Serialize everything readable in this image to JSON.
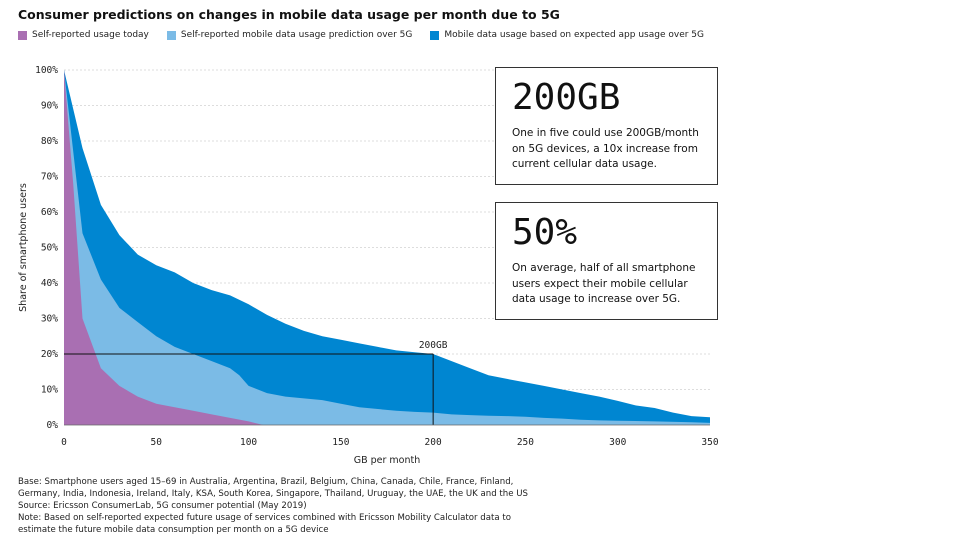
{
  "title": "Consumer predictions on changes in mobile data usage per month due to 5G",
  "legend": [
    {
      "label": "Self-reported usage today",
      "color": "#a96fb2"
    },
    {
      "label": "Self-reported mobile data usage prediction over 5G",
      "color": "#7bbbe6"
    },
    {
      "label": "Mobile data usage based on expected app usage over 5G",
      "color": "#0086d1"
    }
  ],
  "callouts": [
    {
      "big": "200GB",
      "text": "One in five could use 200GB/month on 5G devices, a 10x increase from current cellular data usage."
    },
    {
      "big": "50%",
      "text": "On average, half of all smartphone users expect their mobile cellular data usage to increase over 5G."
    }
  ],
  "annotation": {
    "label": "200GB",
    "x": 200,
    "y": 20
  },
  "footnotes": [
    "Base: Smartphone users aged 15–69 in Australia, Argentina, Brazil, Belgium, China, Canada, Chile, France, Finland,",
    "Germany, India, Indonesia, Ireland, Italy, KSA, South Korea, Singapore, Thailand, Uruguay, the UAE, the UK and the US",
    "Source: Ericsson ConsumerLab, 5G consumer potential (May 2019)",
    "Note: Based on self-reported expected future usage of services combined with Ericsson Mobility Calculator data to",
    "estimate the future mobile data consumption per month on a 5G device"
  ],
  "chart_data": {
    "type": "area",
    "title": "Consumer predictions on changes in mobile data usage per month due to 5G",
    "xlabel": "GB per month",
    "ylabel": "Share of smartphone users",
    "xlim": [
      0,
      350
    ],
    "ylim": [
      0,
      100
    ],
    "x_ticks": [
      0,
      50,
      100,
      150,
      200,
      250,
      300,
      350
    ],
    "y_ticks": [
      "0%",
      "10%",
      "20%",
      "30%",
      "40%",
      "50%",
      "60%",
      "70%",
      "80%",
      "90%",
      "100%"
    ],
    "legend_position": "top-left",
    "grid": "horizontal dashed",
    "series": [
      {
        "name": "Mobile data usage based on expected app usage over 5G",
        "color": "#0086d1",
        "points": [
          [
            0,
            100
          ],
          [
            10,
            78
          ],
          [
            20,
            62
          ],
          [
            30,
            53.5
          ],
          [
            40,
            48
          ],
          [
            50,
            45
          ],
          [
            60,
            43
          ],
          [
            70,
            40
          ],
          [
            80,
            38
          ],
          [
            90,
            36.5
          ],
          [
            100,
            34
          ],
          [
            110,
            31
          ],
          [
            120,
            28.5
          ],
          [
            130,
            26.5
          ],
          [
            140,
            25
          ],
          [
            150,
            24
          ],
          [
            160,
            23
          ],
          [
            170,
            22
          ],
          [
            180,
            21
          ],
          [
            190,
            20.5
          ],
          [
            200,
            20
          ],
          [
            210,
            18
          ],
          [
            220,
            16
          ],
          [
            230,
            14
          ],
          [
            240,
            13
          ],
          [
            250,
            12
          ],
          [
            260,
            11
          ],
          [
            270,
            10
          ],
          [
            280,
            9
          ],
          [
            290,
            8
          ],
          [
            300,
            6.8
          ],
          [
            310,
            5.5
          ],
          [
            320,
            4.8
          ],
          [
            330,
            3.5
          ],
          [
            340,
            2.5
          ],
          [
            350,
            2.2
          ]
        ]
      },
      {
        "name": "Self-reported mobile data usage prediction over 5G",
        "color": "#7bbbe6",
        "points": [
          [
            0,
            100
          ],
          [
            10,
            54
          ],
          [
            20,
            41
          ],
          [
            30,
            33
          ],
          [
            40,
            29
          ],
          [
            50,
            25
          ],
          [
            60,
            22
          ],
          [
            70,
            20
          ],
          [
            80,
            18
          ],
          [
            90,
            16
          ],
          [
            95,
            14
          ],
          [
            100,
            11
          ],
          [
            110,
            9
          ],
          [
            120,
            8
          ],
          [
            130,
            7.5
          ],
          [
            140,
            7
          ],
          [
            150,
            6
          ],
          [
            160,
            5
          ],
          [
            170,
            4.5
          ],
          [
            180,
            4
          ],
          [
            190,
            3.7
          ],
          [
            200,
            3.5
          ],
          [
            210,
            3
          ],
          [
            220,
            2.8
          ],
          [
            230,
            2.6
          ],
          [
            240,
            2.5
          ],
          [
            250,
            2.3
          ],
          [
            260,
            2
          ],
          [
            270,
            1.8
          ],
          [
            280,
            1.5
          ],
          [
            290,
            1.3
          ],
          [
            300,
            1.2
          ],
          [
            320,
            1
          ],
          [
            340,
            0.8
          ],
          [
            350,
            0.6
          ]
        ]
      },
      {
        "name": "Self-reported usage today",
        "color": "#a96fb2",
        "points": [
          [
            0,
            100
          ],
          [
            5,
            68
          ],
          [
            10,
            30
          ],
          [
            20,
            16
          ],
          [
            30,
            11
          ],
          [
            40,
            8
          ],
          [
            50,
            6
          ],
          [
            60,
            5
          ],
          [
            70,
            4
          ],
          [
            80,
            3
          ],
          [
            90,
            2
          ],
          [
            100,
            1
          ],
          [
            108,
            0
          ]
        ]
      }
    ]
  }
}
